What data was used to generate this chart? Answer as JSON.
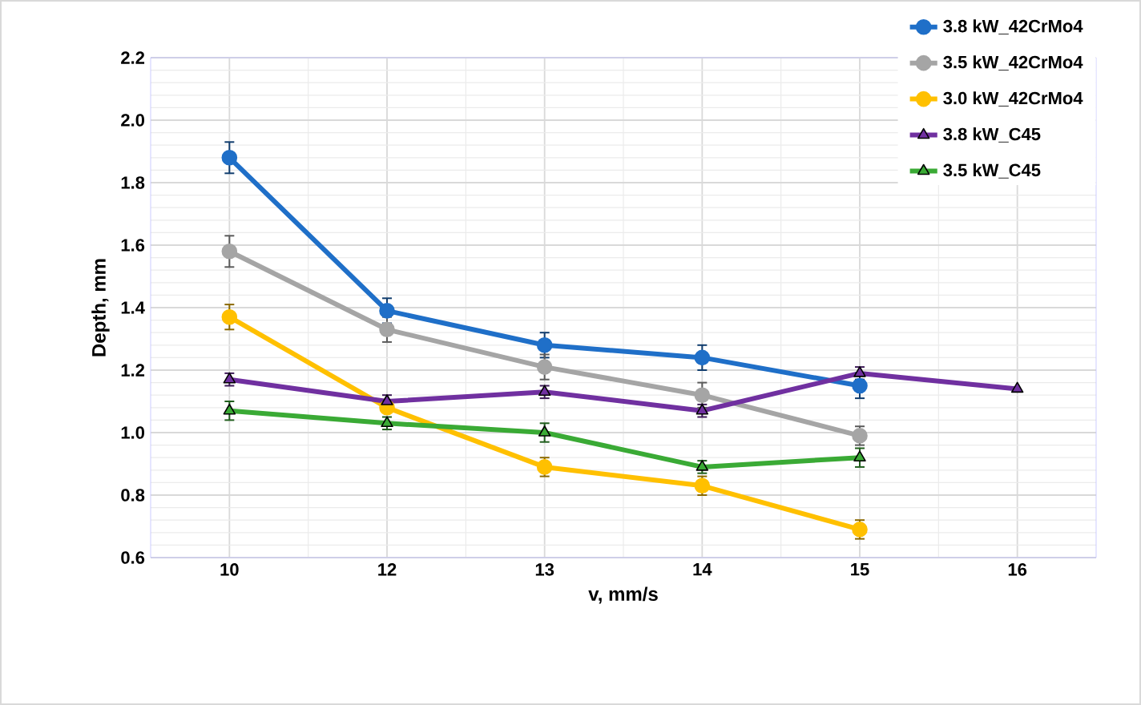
{
  "chart_data": {
    "type": "line",
    "xlabel": "v, mm/s",
    "ylabel": "Depth, mm",
    "categories": [
      "10",
      "12",
      "13",
      "14",
      "15",
      "16"
    ],
    "ylim": [
      0.6,
      2.2
    ],
    "yticks": [
      {
        "value": 0.6,
        "label": "0.6"
      },
      {
        "value": 0.8,
        "label": "0.8"
      },
      {
        "value": 1.0,
        "label": "1.0"
      },
      {
        "value": 1.2,
        "label": "1.2"
      },
      {
        "value": 1.4,
        "label": "1.4"
      },
      {
        "value": 1.6,
        "label": "1.6"
      },
      {
        "value": 1.8,
        "label": "1.8"
      },
      {
        "value": 2.0,
        "label": "2.0"
      },
      {
        "value": 2.2,
        "label": "2.2"
      }
    ],
    "grid": true,
    "legend": "top right",
    "line_style": "solid",
    "series": [
      {
        "name": "3.8 kW_42CrMo4",
        "color": "#1f6fc8",
        "marker": "circle",
        "values": [
          1.88,
          1.39,
          1.28,
          1.24,
          1.15,
          null
        ],
        "errors": [
          0.05,
          0.04,
          0.04,
          0.04,
          0.04,
          null
        ]
      },
      {
        "name": "3.5 kW_42CrMo4",
        "color": "#a5a5a5",
        "marker": "circle",
        "values": [
          1.58,
          1.33,
          1.21,
          1.12,
          0.99,
          null
        ],
        "errors": [
          0.05,
          0.04,
          0.04,
          0.04,
          0.03,
          null
        ]
      },
      {
        "name": "3.0 kW_42CrMo4",
        "color": "#ffc000",
        "marker": "circle",
        "values": [
          1.37,
          1.08,
          0.89,
          0.83,
          0.69,
          null
        ],
        "errors": [
          0.04,
          null,
          0.03,
          0.03,
          0.03,
          null
        ]
      },
      {
        "name": "3.8 kW_C45",
        "color": "#7030a0",
        "marker": "triangle",
        "values": [
          1.17,
          1.1,
          1.13,
          1.07,
          1.19,
          1.14
        ],
        "errors": [
          0.02,
          0.02,
          0.02,
          0.02,
          0.02,
          null
        ]
      },
      {
        "name": "3.5 kW_C45",
        "color": "#3aaa35",
        "marker": "triangle",
        "values": [
          1.07,
          1.03,
          1.0,
          0.89,
          0.92,
          null
        ],
        "errors": [
          0.03,
          0.02,
          0.03,
          0.02,
          0.03,
          null
        ]
      }
    ]
  }
}
